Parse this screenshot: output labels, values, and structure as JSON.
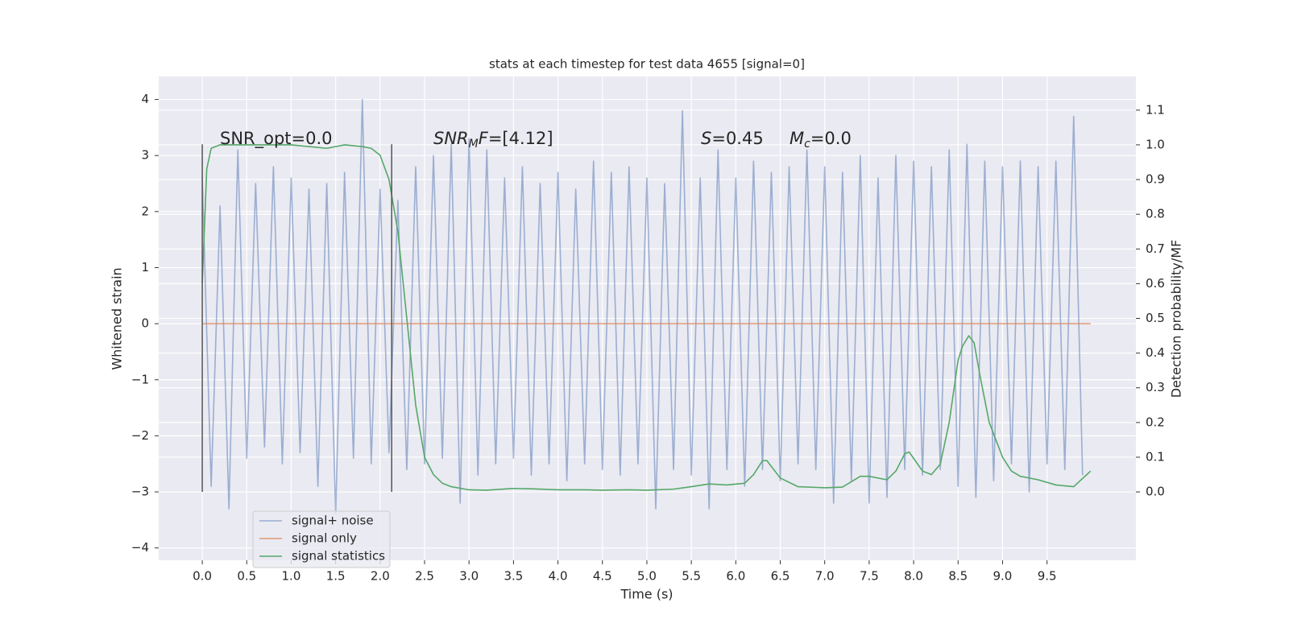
{
  "chart_data": {
    "type": "line",
    "title": "stats at each timestep for test data 4655 [signal=0]",
    "xlabel": "Time (s)",
    "ylabel": "Whitened strain",
    "y2label": "Detection probability/MF",
    "grid": true,
    "legend": "lower left",
    "xlim": [
      -0.49,
      10.5
    ],
    "ylim": [
      -4.22,
      4.41
    ],
    "y2lim": [
      -0.197,
      1.197
    ],
    "xticks": [
      {
        "value": 0,
        "label": "0.0"
      },
      0.5,
      {
        "value": 1,
        "label": "1.0"
      },
      1.5,
      {
        "value": 2,
        "label": "2.0"
      },
      2.5,
      {
        "value": 3,
        "label": "3.0"
      },
      3.5,
      {
        "value": 4,
        "label": "4.0"
      },
      4.5,
      {
        "value": 5,
        "label": "5.0"
      },
      5.5,
      {
        "value": 6,
        "label": "6.0"
      },
      6.5,
      {
        "value": 7,
        "label": "7.0"
      },
      7.5,
      {
        "value": 8,
        "label": "8.0"
      },
      8.5,
      {
        "value": 9,
        "label": "9.0"
      },
      9.5
    ],
    "yticks": [
      {
        "value": -4,
        "label": "−4"
      },
      {
        "value": -3,
        "label": "−3"
      },
      {
        "value": -2,
        "label": "−2"
      },
      {
        "value": -1,
        "label": "−1"
      },
      0,
      1,
      2,
      3,
      4
    ],
    "y2ticks": [
      {
        "value": 0,
        "label": "0.0"
      },
      0.1,
      0.2,
      0.3,
      0.4,
      0.5,
      0.6,
      0.7,
      0.8,
      0.9,
      {
        "value": 1,
        "label": "1.0"
      },
      1.1
    ],
    "vlines": [
      0,
      2.13
    ],
    "vline_range": [
      -3,
      3.2
    ],
    "annotations": [
      [
        "SNR_opt=0.0"
      ],
      [
        {
          "i": "SNR"
        },
        {
          "sub": "M"
        },
        {
          "i": "F"
        },
        "=[4.12]"
      ],
      [
        {
          "i": "S"
        },
        "=0.45"
      ],
      [
        {
          "i": "M"
        },
        {
          "sub": "c"
        },
        "=0.0"
      ]
    ],
    "series": [
      {
        "name": "signal+ noise",
        "color": "#4c72b0",
        "opacity": 0.5,
        "x": [
          0,
          0.1,
          0.2,
          0.3,
          0.4,
          0.5,
          0.6,
          0.7,
          0.8,
          0.9,
          1,
          1.1,
          1.2,
          1.3,
          1.4,
          1.5,
          1.6,
          1.7,
          1.8,
          1.9,
          2,
          2.1,
          2.2,
          2.3,
          2.4,
          2.5,
          2.6,
          2.7,
          2.8,
          2.9,
          3,
          3.1,
          3.2,
          3.3,
          3.4,
          3.5,
          3.6,
          3.7,
          3.8,
          3.9,
          4,
          4.1,
          4.2,
          4.3,
          4.4,
          4.5,
          4.6,
          4.7,
          4.8,
          4.9,
          5,
          5.1,
          5.2,
          5.3,
          5.4,
          5.5,
          5.6,
          5.7,
          5.8,
          5.9,
          6,
          6.1,
          6.2,
          6.3,
          6.4,
          6.5,
          6.6,
          6.7,
          6.8,
          6.9,
          7,
          7.1,
          7.2,
          7.3,
          7.4,
          7.5,
          7.6,
          7.7,
          7.8,
          7.9,
          8,
          8.1,
          8.2,
          8.3,
          8.4,
          8.5,
          8.6,
          8.7,
          8.8,
          8.9,
          9,
          9.1,
          9.2,
          9.3,
          9.4,
          9.5,
          9.6,
          9.7,
          9.8,
          9.9
        ],
        "values": [
          2.6,
          -2.9,
          2.1,
          -3.3,
          3.1,
          -2.4,
          2.5,
          -2.2,
          2.8,
          -2.5,
          2.6,
          -2.3,
          2.4,
          -2.9,
          2.5,
          -3.4,
          2.7,
          -2.4,
          4.0,
          -2.5,
          2.4,
          -2.3,
          2.2,
          -2.6,
          2.8,
          -2.5,
          3.0,
          -2.4,
          3.2,
          -3.2,
          3.3,
          -2.7,
          3.1,
          -2.5,
          2.6,
          -2.4,
          2.8,
          -2.7,
          2.5,
          -2.5,
          2.7,
          -2.8,
          2.4,
          -2.5,
          2.9,
          -2.6,
          2.7,
          -2.7,
          2.8,
          -2.5,
          2.6,
          -3.3,
          2.5,
          -2.6,
          3.8,
          -2.7,
          2.6,
          -3.3,
          3.1,
          -2.6,
          2.6,
          -2.9,
          2.9,
          -2.6,
          2.7,
          -2.8,
          2.8,
          -2.5,
          3.1,
          -2.6,
          2.8,
          -3.2,
          2.7,
          -2.8,
          3.0,
          -3.2,
          2.6,
          -3.1,
          3.0,
          -2.6,
          2.9,
          -2.7,
          2.8,
          -2.6,
          3.1,
          -2.9,
          3.2,
          -3.1,
          2.9,
          -2.8,
          2.8,
          -2.5,
          2.9,
          -3.0,
          2.8,
          -2.5,
          2.9,
          -2.6,
          3.7,
          -2.7
        ]
      },
      {
        "name": "signal only",
        "color": "#dd8452",
        "opacity": 0.8,
        "x": [
          0,
          9.99
        ],
        "values": [
          0,
          0
        ]
      },
      {
        "name": "signal statistics",
        "color": "#55a868",
        "opacity": 1,
        "axis": "y2",
        "x": [
          0,
          0.05,
          0.1,
          0.2,
          0.4,
          0.6,
          0.8,
          1.0,
          1.2,
          1.4,
          1.6,
          1.8,
          1.9,
          2.0,
          2.1,
          2.2,
          2.3,
          2.4,
          2.5,
          2.6,
          2.7,
          2.8,
          3.0,
          3.2,
          3.5,
          3.7,
          4.0,
          4.3,
          4.5,
          4.8,
          5.0,
          5.3,
          5.5,
          5.7,
          5.9,
          6.1,
          6.2,
          6.3,
          6.35,
          6.5,
          6.7,
          7.0,
          7.2,
          7.4,
          7.5,
          7.7,
          7.8,
          7.9,
          7.95,
          8.1,
          8.2,
          8.3,
          8.4,
          8.5,
          8.55,
          8.62,
          8.68,
          8.75,
          8.85,
          9.0,
          9.1,
          9.2,
          9.4,
          9.6,
          9.8,
          9.99
        ],
        "values": [
          0.6,
          0.93,
          0.99,
          1.0,
          1.0,
          1.0,
          1.0,
          1.0,
          0.995,
          0.99,
          1.0,
          0.995,
          0.99,
          0.97,
          0.9,
          0.75,
          0.5,
          0.25,
          0.1,
          0.05,
          0.025,
          0.015,
          0.006,
          0.005,
          0.01,
          0.009,
          0.006,
          0.006,
          0.005,
          0.006,
          0.005,
          0.008,
          0.015,
          0.023,
          0.02,
          0.025,
          0.05,
          0.09,
          0.09,
          0.04,
          0.015,
          0.012,
          0.014,
          0.045,
          0.045,
          0.035,
          0.06,
          0.11,
          0.115,
          0.06,
          0.05,
          0.08,
          0.2,
          0.38,
          0.42,
          0.45,
          0.43,
          0.33,
          0.2,
          0.1,
          0.06,
          0.045,
          0.035,
          0.02,
          0.015,
          0.06
        ]
      }
    ]
  }
}
